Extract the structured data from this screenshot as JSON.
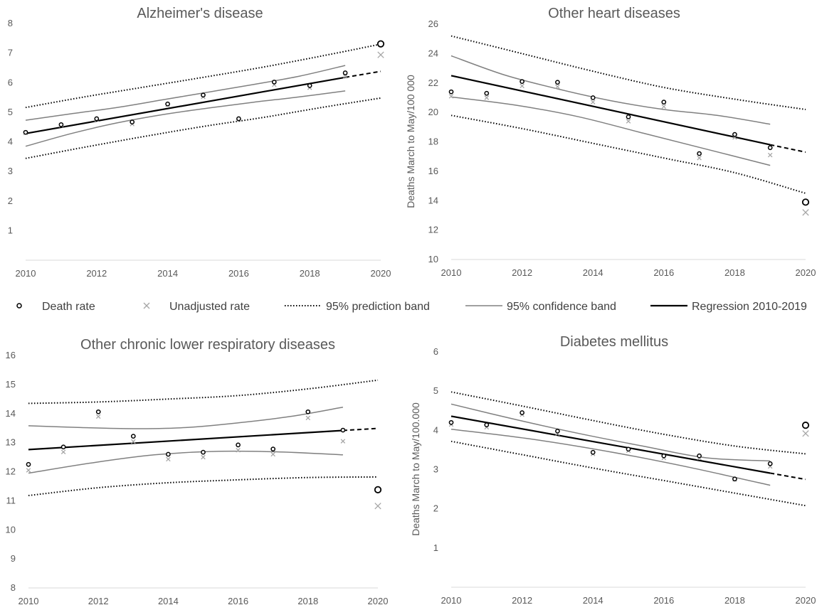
{
  "legend": {
    "death_rate": "Death rate",
    "unadjusted": "Unadjusted rate",
    "prediction": "95% prediction band",
    "confidence": "95% confidence band",
    "regression": "Regression 2010-2019"
  },
  "colors": {
    "regression": "#000000",
    "band": "#808080",
    "death_marker": "#000000",
    "unadjusted_marker": "#a6a6a6",
    "axis": "#d9d9d9",
    "text": "#595959"
  },
  "chart_data": [
    {
      "type": "scatter",
      "title": "Alzheimer's disease",
      "ylabel": "",
      "xlim": [
        2010,
        2020
      ],
      "ylim": [
        0,
        8
      ],
      "xticks": [
        2010,
        2012,
        2014,
        2016,
        2018,
        2020
      ],
      "yticks": [
        1,
        2,
        3,
        4,
        5,
        6,
        7,
        8
      ],
      "years": [
        2010,
        2011,
        2012,
        2013,
        2014,
        2015,
        2016,
        2017,
        2018,
        2019
      ],
      "death_rate": [
        4.32,
        4.58,
        4.78,
        4.67,
        5.28,
        5.58,
        4.78,
        6.02,
        5.9,
        6.33
      ],
      "unadjusted_rate": [
        4.3,
        4.56,
        4.75,
        4.6,
        5.25,
        5.52,
        4.75,
        5.93,
        5.83,
        6.21
      ],
      "outlier_2020": {
        "death_rate": 7.31,
        "unadjusted_rate": 6.94
      },
      "regression": {
        "start": 4.28,
        "end_2019": 6.18,
        "end_2020": 6.38
      },
      "confidence_upper": [
        4.73,
        4.95,
        5.16,
        5.42,
        5.68,
        5.94,
        6.22,
        6.58
      ],
      "confidence_lower": [
        3.85,
        4.28,
        4.64,
        4.92,
        5.14,
        5.34,
        5.52,
        5.72
      ],
      "prediction_upper": [
        5.16,
        5.52,
        5.85,
        6.18,
        6.52,
        6.9,
        7.3
      ],
      "prediction_lower": [
        3.44,
        3.82,
        4.18,
        4.52,
        4.82,
        5.16,
        5.48
      ]
    },
    {
      "type": "scatter",
      "title": "Other heart diseases",
      "ylabel": "Deaths March to May/100 000",
      "xlim": [
        2010,
        2020
      ],
      "ylim": [
        10,
        26
      ],
      "xticks": [
        2010,
        2012,
        2014,
        2016,
        2018,
        2020
      ],
      "yticks": [
        10,
        12,
        14,
        16,
        18,
        20,
        22,
        24,
        26
      ],
      "years": [
        2010,
        2011,
        2012,
        2013,
        2014,
        2015,
        2016,
        2017,
        2018,
        2019
      ],
      "death_rate": [
        21.4,
        21.3,
        22.1,
        22.05,
        21.0,
        19.7,
        20.7,
        17.2,
        18.5,
        17.6
      ],
      "unadjusted_rate": [
        21.1,
        21.0,
        21.8,
        21.75,
        20.7,
        19.4,
        20.4,
        16.9,
        18.3,
        17.1
      ],
      "outlier_2020": {
        "death_rate": 13.9,
        "unadjusted_rate": 13.2
      },
      "regression": {
        "start": 22.5,
        "end_2019": 17.8,
        "end_2020": 17.3
      },
      "confidence_upper": [
        23.85,
        22.55,
        21.6,
        20.8,
        20.2,
        19.8,
        19.2
      ],
      "confidence_lower": [
        21.05,
        20.5,
        19.7,
        18.6,
        17.5,
        16.4
      ],
      "prediction_upper": [
        25.2,
        24.0,
        22.8,
        21.7,
        20.9,
        20.2
      ],
      "prediction_lower": [
        19.8,
        18.9,
        17.9,
        16.9,
        15.9,
        14.5
      ]
    },
    {
      "type": "scatter",
      "title": "Other chronic lower respiratory diseases",
      "ylabel": "",
      "xlim": [
        2010,
        2020
      ],
      "ylim": [
        8,
        16
      ],
      "xticks": [
        2010,
        2012,
        2014,
        2016,
        2018,
        2020
      ],
      "yticks": [
        8,
        9,
        10,
        11,
        12,
        13,
        14,
        15,
        16
      ],
      "years": [
        2010,
        2011,
        2012,
        2013,
        2014,
        2015,
        2016,
        2017,
        2018,
        2019
      ],
      "death_rate": [
        12.25,
        12.85,
        14.06,
        13.22,
        12.6,
        12.67,
        12.92,
        12.78,
        14.06,
        13.43
      ],
      "unadjusted_rate": [
        12.05,
        12.68,
        13.9,
        13.04,
        12.43,
        12.5,
        12.74,
        12.6,
        13.85,
        13.05
      ],
      "outlier_2020": {
        "death_rate": 11.38,
        "unadjusted_rate": 10.82
      },
      "regression": {
        "start": 12.76,
        "end_2019": 13.42,
        "end_2020": 13.49
      },
      "confidence_upper": [
        13.58,
        13.52,
        13.48,
        13.52,
        13.68,
        13.9,
        14.22
      ],
      "confidence_lower": [
        11.95,
        12.3,
        12.58,
        12.7,
        12.68,
        12.58
      ],
      "prediction_upper": [
        14.35,
        14.4,
        14.5,
        14.62,
        14.85,
        15.15
      ],
      "prediction_lower": [
        11.18,
        11.45,
        11.62,
        11.72,
        11.8,
        11.82
      ]
    },
    {
      "type": "scatter",
      "title": "Diabetes mellitus",
      "ylabel": "Deaths March to May/100.000",
      "xlim": [
        2010,
        2020
      ],
      "ylim": [
        0,
        6
      ],
      "xticks": [
        2010,
        2012,
        2014,
        2016,
        2018,
        2020
      ],
      "yticks": [
        1,
        2,
        3,
        4,
        5,
        6
      ],
      "years": [
        2010,
        2011,
        2012,
        2013,
        2014,
        2015,
        2016,
        2017,
        2018,
        2019
      ],
      "death_rate": [
        4.2,
        4.14,
        4.45,
        3.98,
        3.44,
        3.52,
        3.35,
        3.35,
        2.76,
        3.15
      ],
      "unadjusted_rate": [
        4.15,
        4.08,
        4.4,
        3.92,
        3.4,
        3.48,
        3.3,
        3.3,
        2.75,
        3.08
      ],
      "outlier_2020": {
        "death_rate": 4.13,
        "unadjusted_rate": 3.92
      },
      "regression": {
        "start": 4.36,
        "end_2019": 2.91,
        "end_2020": 2.75
      },
      "confidence_upper": [
        4.67,
        4.28,
        3.92,
        3.6,
        3.3,
        3.22
      ],
      "confidence_lower": [
        4.03,
        3.78,
        3.45,
        3.05,
        2.6
      ],
      "prediction_upper": [
        4.98,
        4.62,
        4.25,
        3.9,
        3.6,
        3.4
      ],
      "prediction_lower": [
        3.72,
        3.38,
        3.04,
        2.72,
        2.4,
        2.08
      ]
    }
  ]
}
